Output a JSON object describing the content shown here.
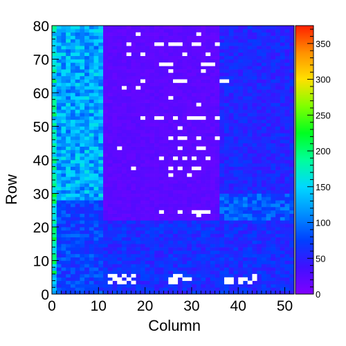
{
  "chart_data": {
    "type": "heatmap",
    "xlabel": "Column",
    "ylabel": "Row",
    "xlim": [
      0,
      52
    ],
    "ylim": [
      0,
      80
    ],
    "x_ticks": [
      "0",
      "10",
      "20",
      "30",
      "40",
      "50"
    ],
    "y_ticks": [
      "0",
      "10",
      "20",
      "30",
      "40",
      "50",
      "60",
      "70",
      "80"
    ],
    "colorbar": {
      "range": [
        0,
        375
      ],
      "ticks": [
        "0",
        "50",
        "100",
        "150",
        "200",
        "250",
        "300",
        "350"
      ],
      "palette": [
        "#8000ff",
        "#4010ff",
        "#0040ff",
        "#0090ff",
        "#00d8ff",
        "#00ff9a",
        "#00ff20",
        "#80ff00",
        "#ffe000",
        "#ff9000",
        "#ff2000"
      ]
    },
    "regions": [
      {
        "columns": [
          0,
          1
        ],
        "rows": [
          0,
          80
        ],
        "level": 170
      },
      {
        "columns": [
          1,
          11
        ],
        "rows": [
          28,
          80
        ],
        "level": 125
      },
      {
        "columns": [
          1,
          11
        ],
        "rows": [
          0,
          28
        ],
        "level": 75
      },
      {
        "columns": [
          11,
          36
        ],
        "rows": [
          22,
          80
        ],
        "level": 20
      },
      {
        "columns": [
          11,
          52
        ],
        "rows": [
          0,
          22
        ],
        "level": 60
      },
      {
        "columns": [
          36,
          52
        ],
        "rows": [
          30,
          80
        ],
        "level": 55
      },
      {
        "columns": [
          36,
          52
        ],
        "rows": [
          22,
          30
        ],
        "level": 85
      }
    ],
    "empty_bins": [
      [
        18,
        77
      ],
      [
        31,
        77
      ],
      [
        16,
        74
      ],
      [
        22,
        74
      ],
      [
        23,
        74
      ],
      [
        25,
        74
      ],
      [
        26,
        74
      ],
      [
        27,
        74
      ],
      [
        30,
        74
      ],
      [
        31,
        74
      ],
      [
        35,
        74
      ],
      [
        16,
        71
      ],
      [
        19,
        71
      ],
      [
        28,
        71
      ],
      [
        33,
        71
      ],
      [
        23,
        68
      ],
      [
        24,
        68
      ],
      [
        25,
        68
      ],
      [
        32,
        68
      ],
      [
        33,
        68
      ],
      [
        34,
        68
      ],
      [
        25,
        66
      ],
      [
        32,
        66
      ],
      [
        19,
        63
      ],
      [
        26,
        63
      ],
      [
        27,
        63
      ],
      [
        28,
        63
      ],
      [
        36,
        63
      ],
      [
        37,
        63
      ],
      [
        15,
        61
      ],
      [
        18,
        61
      ],
      [
        25,
        58
      ],
      [
        31,
        56
      ],
      [
        19,
        52
      ],
      [
        22,
        52
      ],
      [
        23,
        52
      ],
      [
        26,
        52
      ],
      [
        29,
        52
      ],
      [
        30,
        52
      ],
      [
        31,
        52
      ],
      [
        32,
        52
      ],
      [
        35,
        52
      ],
      [
        27,
        49
      ],
      [
        25,
        46
      ],
      [
        27,
        46
      ],
      [
        28,
        46
      ],
      [
        31,
        46
      ],
      [
        35,
        46
      ],
      [
        14,
        43
      ],
      [
        27,
        43
      ],
      [
        31,
        43
      ],
      [
        32,
        43
      ],
      [
        23,
        40
      ],
      [
        26,
        40
      ],
      [
        28,
        40
      ],
      [
        30,
        40
      ],
      [
        33,
        40
      ],
      [
        17,
        37
      ],
      [
        25,
        37
      ],
      [
        27,
        37
      ],
      [
        30,
        37
      ],
      [
        31,
        37
      ],
      [
        25,
        35
      ],
      [
        29,
        35
      ],
      [
        23,
        24
      ],
      [
        27,
        24
      ],
      [
        30,
        24
      ],
      [
        31,
        24
      ],
      [
        32,
        24
      ],
      [
        33,
        24
      ],
      [
        31,
        23
      ],
      [
        12,
        5
      ],
      [
        13,
        5
      ],
      [
        15,
        5
      ],
      [
        17,
        5
      ],
      [
        13,
        4
      ],
      [
        14,
        4
      ],
      [
        16,
        4
      ],
      [
        12,
        3
      ],
      [
        14,
        3
      ],
      [
        15,
        3
      ],
      [
        17,
        3
      ],
      [
        26,
        5
      ],
      [
        27,
        5
      ],
      [
        25,
        4
      ],
      [
        26,
        4
      ],
      [
        28,
        4
      ],
      [
        29,
        4
      ],
      [
        25,
        3
      ],
      [
        26,
        3
      ],
      [
        43,
        5
      ],
      [
        37,
        4
      ],
      [
        38,
        4
      ],
      [
        40,
        4
      ],
      [
        41,
        4
      ],
      [
        43,
        4
      ],
      [
        37,
        3
      ],
      [
        38,
        3
      ],
      [
        40,
        3
      ],
      [
        42,
        3
      ]
    ]
  }
}
